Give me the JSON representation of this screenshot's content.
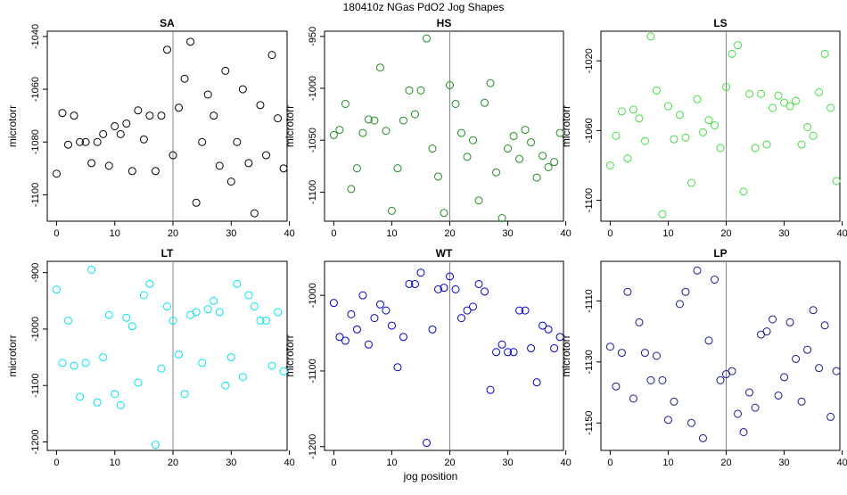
{
  "title": "180410z   NGas PdO2 Jog Shapes",
  "xlabel": "jog position",
  "chart_data": [
    {
      "type": "scatter",
      "title": "SA",
      "ylabel": "microtorr",
      "color": "#000000",
      "xlim": [
        0,
        40
      ],
      "ylim": [
        -1110,
        -1038
      ],
      "xticks": [
        0,
        10,
        20,
        30,
        40
      ],
      "yticks": [
        -1040,
        -1060,
        -1080,
        -1100
      ],
      "vline": 20,
      "x": [
        0,
        1,
        2,
        3,
        4,
        5,
        6,
        7,
        8,
        9,
        10,
        11,
        12,
        13,
        14,
        15,
        16,
        17,
        18,
        19,
        20,
        21,
        22,
        23,
        24,
        25,
        26,
        27,
        28,
        29,
        30,
        31,
        32,
        33,
        34,
        35,
        36,
        37,
        38,
        39
      ],
      "y": [
        -1092,
        -1069,
        -1081,
        -1070,
        -1080,
        -1080,
        -1088,
        -1080,
        -1077,
        -1089,
        -1074,
        -1077,
        -1073,
        -1091,
        -1068,
        -1079,
        -1070,
        -1091,
        -1070,
        -1045,
        -1085,
        -1067,
        -1056,
        -1042,
        -1103,
        -1080,
        -1062,
        -1070,
        -1089,
        -1053,
        -1095,
        -1080,
        -1060,
        -1088,
        -1107,
        -1066,
        -1085,
        -1047,
        -1071,
        -1090
      ]
    },
    {
      "type": "scatter",
      "title": "HS",
      "ylabel": "microtorr",
      "color": "#228B22",
      "xlim": [
        0,
        40
      ],
      "ylim": [
        -1128,
        -945
      ],
      "xticks": [
        0,
        10,
        20,
        30,
        40
      ],
      "yticks": [
        -950,
        -1000,
        -1050,
        -1100
      ],
      "vline": 20,
      "x": [
        0,
        1,
        2,
        3,
        4,
        5,
        6,
        7,
        8,
        9,
        10,
        11,
        12,
        13,
        14,
        15,
        16,
        17,
        18,
        19,
        20,
        21,
        22,
        23,
        24,
        25,
        26,
        27,
        28,
        29,
        30,
        31,
        32,
        33,
        34,
        35,
        36,
        37,
        38,
        39
      ],
      "y": [
        -1045,
        -1040,
        -1015,
        -1097,
        -1077,
        -1043,
        -1030,
        -1031,
        -980,
        -1041,
        -1118,
        -1077,
        -1031,
        -1002,
        -1025,
        -1002,
        -952,
        -1058,
        -1085,
        -1120,
        -997,
        -1015,
        -1043,
        -1066,
        -1050,
        -1108,
        -1014,
        -995,
        -1081,
        -1125,
        -1058,
        -1046,
        -1068,
        -1040,
        -1052,
        -1086,
        -1065,
        -1076,
        -1071,
        -1043
      ]
    },
    {
      "type": "scatter",
      "title": "LS",
      "ylabel": "microtorr",
      "color": "#44DD44",
      "xlim": [
        0,
        40
      ],
      "ylim": [
        -1112,
        -1003
      ],
      "xticks": [
        0,
        10,
        20,
        30,
        40
      ],
      "yticks": [
        -1020,
        -1060,
        -1100
      ],
      "vline": 20,
      "x": [
        0,
        1,
        2,
        3,
        4,
        5,
        6,
        7,
        8,
        9,
        10,
        11,
        12,
        13,
        14,
        15,
        16,
        17,
        18,
        19,
        20,
        21,
        22,
        23,
        24,
        25,
        26,
        27,
        28,
        29,
        30,
        31,
        32,
        33,
        34,
        35,
        36,
        37,
        38,
        39
      ],
      "y": [
        -1080,
        -1063,
        -1049,
        -1076,
        -1048,
        -1053,
        -1066,
        -1006,
        -1037,
        -1108,
        -1046,
        -1065,
        -1051,
        -1064,
        -1090,
        -1042,
        -1061,
        -1054,
        -1057,
        -1070,
        -1035,
        -1016,
        -1011,
        -1095,
        -1039,
        -1070,
        -1039,
        -1068,
        -1047,
        -1040,
        -1044,
        -1046,
        -1043,
        -1068,
        -1058,
        -1063,
        -1038,
        -1016,
        -1047,
        -1089
      ]
    },
    {
      "type": "scatter",
      "title": "LT",
      "ylabel": "microtorr",
      "color": "#00E5EE",
      "xlim": [
        0,
        40
      ],
      "ylim": [
        -1215,
        -880
      ],
      "xticks": [
        0,
        10,
        20,
        30,
        40
      ],
      "yticks": [
        -900,
        -1000,
        -1100,
        -1200
      ],
      "vline": 20,
      "x": [
        0,
        1,
        2,
        3,
        4,
        5,
        6,
        7,
        8,
        9,
        10,
        11,
        12,
        13,
        14,
        15,
        16,
        17,
        18,
        19,
        20,
        21,
        22,
        23,
        24,
        25,
        26,
        27,
        28,
        29,
        30,
        31,
        32,
        33,
        34,
        35,
        36,
        37,
        38,
        39
      ],
      "y": [
        -930,
        -1060,
        -985,
        -1065,
        -1120,
        -1060,
        -895,
        -1130,
        -1050,
        -975,
        -1115,
        -1135,
        -980,
        -995,
        -1095,
        -940,
        -920,
        -1205,
        -1070,
        -960,
        -985,
        -1045,
        -1115,
        -975,
        -970,
        -1060,
        -965,
        -950,
        -970,
        -1100,
        -1050,
        -920,
        -1085,
        -940,
        -960,
        -985,
        -985,
        -1065,
        -970,
        -1075
      ]
    },
    {
      "type": "scatter",
      "title": "WT",
      "ylabel": "microtorr",
      "color": "#0000CC",
      "xlim": [
        0,
        40
      ],
      "ylim": [
        -1205,
        -955
      ],
      "xticks": [
        0,
        10,
        20,
        30,
        40
      ],
      "yticks": [
        -1000,
        -1100,
        -1200
      ],
      "vline": 20,
      "x": [
        0,
        1,
        2,
        3,
        4,
        5,
        6,
        7,
        8,
        9,
        10,
        11,
        12,
        13,
        14,
        15,
        16,
        17,
        18,
        19,
        20,
        21,
        22,
        23,
        24,
        25,
        26,
        27,
        28,
        29,
        30,
        31,
        32,
        33,
        34,
        35,
        36,
        37,
        38,
        39
      ],
      "y": [
        -1010,
        -1055,
        -1060,
        -1025,
        -1045,
        -1000,
        -1065,
        -1030,
        -1012,
        -1020,
        -1040,
        -1095,
        -1055,
        -985,
        -985,
        -970,
        -1195,
        -1045,
        -992,
        -990,
        -975,
        -992,
        -1030,
        -1020,
        -1015,
        -985,
        -995,
        -1125,
        -1075,
        -1065,
        -1075,
        -1075,
        -1020,
        -1020,
        -1070,
        -1115,
        -1040,
        -1045,
        -1070,
        -1055
      ]
    },
    {
      "type": "scatter",
      "title": "LP",
      "ylabel": "microtorr",
      "color": "#1A1A8C",
      "xlim": [
        0,
        40
      ],
      "ylim": [
        -1159,
        -1097
      ],
      "xticks": [
        0,
        10,
        20,
        30,
        40
      ],
      "yticks": [
        -1110,
        -1130,
        -1150
      ],
      "vline": 20,
      "x": [
        0,
        1,
        2,
        3,
        4,
        5,
        6,
        7,
        8,
        9,
        10,
        11,
        12,
        13,
        14,
        15,
        16,
        17,
        18,
        19,
        20,
        21,
        22,
        23,
        24,
        25,
        26,
        27,
        28,
        29,
        30,
        31,
        32,
        33,
        34,
        35,
        36,
        37,
        38,
        39
      ],
      "y": [
        -1125,
        -1138,
        -1127,
        -1107,
        -1142,
        -1117,
        -1127,
        -1136,
        -1128,
        -1136,
        -1149,
        -1143,
        -1111,
        -1107,
        -1150,
        -1100,
        -1155,
        -1123,
        -1103,
        -1136,
        -1134,
        -1133,
        -1147,
        -1153,
        -1140,
        -1145,
        -1121,
        -1120,
        -1116,
        -1141,
        -1135,
        -1117,
        -1129,
        -1143,
        -1126,
        -1113,
        -1132,
        -1118,
        -1148,
        -1133
      ]
    }
  ]
}
